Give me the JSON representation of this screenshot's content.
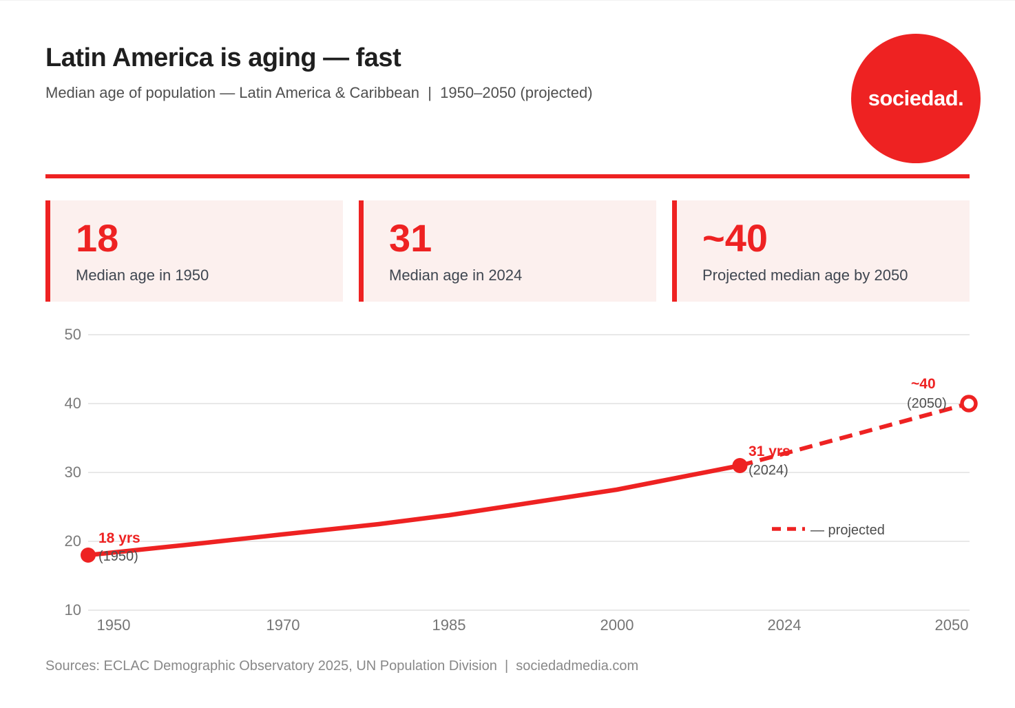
{
  "accent_color": "#ee2222",
  "card_bg_color": "#fcf0ee",
  "header": {
    "title": "Latin America is aging — fast",
    "subtitle": "Median age of population — Latin America & Caribbean  |  1950–2050 (projected)",
    "logo_text": "sociedad."
  },
  "stats": [
    {
      "value": "18",
      "label": "Median age in 1950"
    },
    {
      "value": "31",
      "label": "Median age in 2024"
    },
    {
      "value": "~40",
      "label": "Projected median age by 2050"
    }
  ],
  "chart_data": {
    "type": "line",
    "title": "Median age of population — Latin America & Caribbean, 1950–2050 (projected)",
    "xlabel": "",
    "ylabel": "",
    "ylim": [
      10,
      50
    ],
    "grid": "horizontal",
    "x_tick_labels": [
      "1950",
      "1970",
      "1985",
      "2000",
      "2024",
      "2050"
    ],
    "y_tick_labels": [
      "50",
      "40",
      "30",
      "20",
      "10"
    ],
    "y_tick_values": [
      50,
      40,
      30,
      20,
      10
    ],
    "series": [
      {
        "name": "historical",
        "style": "solid",
        "color": "#ee2222",
        "points": [
          [
            1950,
            18
          ],
          [
            1962,
            19.6
          ],
          [
            1972,
            21
          ],
          [
            1983,
            22.5
          ],
          [
            1991,
            23.8
          ],
          [
            2010,
            27.5
          ],
          [
            2024,
            31
          ]
        ]
      },
      {
        "name": "projected",
        "style": "dashed",
        "color": "#ee2222",
        "points": [
          [
            2024,
            31
          ],
          [
            2050,
            40
          ]
        ]
      }
    ],
    "annotations": [
      {
        "text": "18 yrs",
        "sub": "(1950)",
        "x": 1950,
        "y": 18
      },
      {
        "text": "31 yrs",
        "sub": "(2024)",
        "x": 2024,
        "y": 31
      },
      {
        "text": "~40",
        "sub": "(2050)",
        "x": 2050,
        "y": 40
      }
    ],
    "legend": {
      "label": "— projected",
      "position": "inside-right"
    }
  },
  "footer": {
    "text": "Sources: ECLAC Demographic Observatory 2025, UN Population Division  |  sociedadmedia.com"
  }
}
